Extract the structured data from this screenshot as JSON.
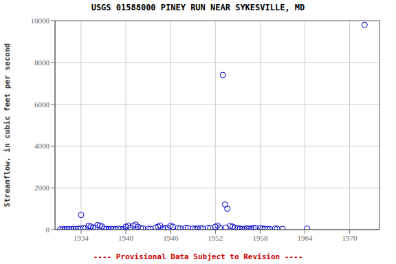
{
  "chart_data": {
    "type": "scatter",
    "title": "USGS 01588000 PINEY RUN NEAR SYKESVILLE, MD",
    "ylabel": "Streamflow, in cubic feet per second",
    "x": [
      1931.2,
      1931.5,
      1931.8,
      1932.1,
      1932.4,
      1932.7,
      1933.0,
      1933.3,
      1933.6,
      1933.9,
      1934.0,
      1934.3,
      1934.6,
      1935.0,
      1935.3,
      1935.6,
      1935.9,
      1936.2,
      1936.5,
      1936.8,
      1937.1,
      1937.4,
      1937.7,
      1938.0,
      1938.3,
      1938.6,
      1939.0,
      1939.3,
      1939.6,
      1940.0,
      1940.3,
      1940.6,
      1941.0,
      1941.3,
      1941.6,
      1942.0,
      1942.3,
      1943.0,
      1943.3,
      1944.0,
      1944.3,
      1944.6,
      1945.0,
      1945.3,
      1945.6,
      1946.0,
      1946.3,
      1947.0,
      1947.3,
      1948.0,
      1948.3,
      1949.0,
      1949.3,
      1949.6,
      1950.0,
      1950.3,
      1951.0,
      1951.3,
      1952.0,
      1952.3,
      1952.6,
      1953.0,
      1953.4,
      1954.0,
      1954.3,
      1954.6,
      1955.0,
      1955.3,
      1955.6,
      1955.9,
      1956.2,
      1956.5,
      1956.8,
      1957.1,
      1957.4,
      1958.0,
      1958.3,
      1958.6,
      1959.0,
      1959.3,
      1960.0,
      1960.3,
      1961.0,
      1964.3,
      1972.0,
      1953.3,
      1953.6
    ],
    "values": [
      15,
      10,
      20,
      25,
      20,
      15,
      40,
      30,
      35,
      50,
      700,
      80,
      60,
      180,
      150,
      100,
      80,
      220,
      190,
      150,
      45,
      30,
      20,
      35,
      25,
      20,
      45,
      30,
      25,
      140,
      190,
      100,
      185,
      240,
      140,
      75,
      55,
      45,
      35,
      90,
      140,
      195,
      75,
      55,
      95,
      190,
      140,
      75,
      55,
      90,
      75,
      55,
      38,
      48,
      70,
      55,
      90,
      70,
      140,
      190,
      90,
      7400,
      100,
      185,
      140,
      95,
      55,
      45,
      35,
      25,
      70,
      50,
      40,
      90,
      70,
      70,
      50,
      40,
      35,
      25,
      50,
      40,
      35,
      50,
      9800,
      1200,
      1000
    ],
    "color": "#0000cc",
    "marker": "circle",
    "xlim": [
      1930.5,
      1974
    ],
    "xticks": [
      1934,
      1940,
      1946,
      1952,
      1958,
      1964,
      1970
    ],
    "ylim": [
      0,
      10000
    ],
    "yticks": [
      0,
      2000,
      4000,
      6000,
      8000,
      10000
    ],
    "grid": true,
    "annotations": [
      {
        "text": "---- Provisional Data Subject to Revision ----",
        "color": "#cc0000"
      }
    ]
  }
}
